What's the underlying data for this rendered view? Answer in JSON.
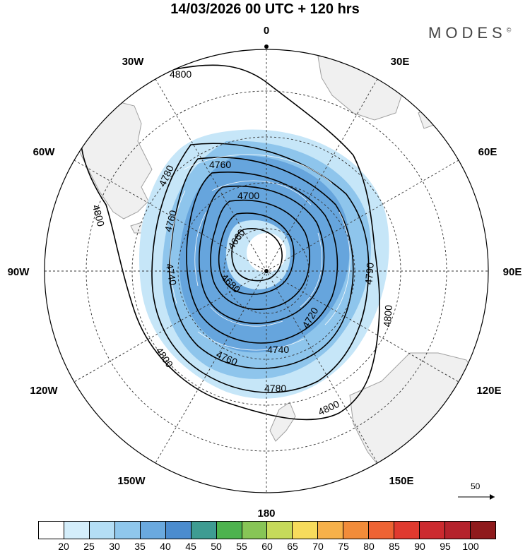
{
  "title": "14/03/2026  00 UTC  + 120 hrs",
  "brand": "MODES",
  "brand_mark": "©",
  "longitude_labels": {
    "0": "0",
    "30E": "30E",
    "60E": "60E",
    "90E": "90E",
    "120E": "120E",
    "150E": "150E",
    "180": "180",
    "150W": "150W",
    "120W": "120W",
    "90W": "90W",
    "60W": "60W",
    "30W": "30W"
  },
  "contour_labels": [
    "4800",
    "4780",
    "4760",
    "4760",
    "4700",
    "4660",
    "4740",
    "4680",
    "4720",
    "4740",
    "4760",
    "4780",
    "4790",
    "4800",
    "4800",
    "4800"
  ],
  "reference_vector": "50",
  "colorbar": {
    "colors": [
      "#ffffff",
      "#d4eefb",
      "#b4def5",
      "#8fc7ec",
      "#6aa9df",
      "#4b8ccf",
      "#3e9c92",
      "#4db34e",
      "#87c556",
      "#c6da5a",
      "#f7dc5c",
      "#f7b14a",
      "#f28c3a",
      "#ee6333",
      "#e03a2f",
      "#cc2a2f",
      "#b5222c",
      "#8f1a1c"
    ],
    "labels": [
      "20",
      "25",
      "30",
      "35",
      "40",
      "45",
      "50",
      "55",
      "60",
      "65",
      "70",
      "75",
      "80",
      "85",
      "90",
      "95",
      "100"
    ]
  },
  "colors": {
    "land": "#f0f0f0",
    "coast": "#a0a0a0",
    "wind_light": "#c6e6f8",
    "wind_mid": "#8ec5ec",
    "wind_strong": "#5f9fdb",
    "contour": "#000000"
  }
}
